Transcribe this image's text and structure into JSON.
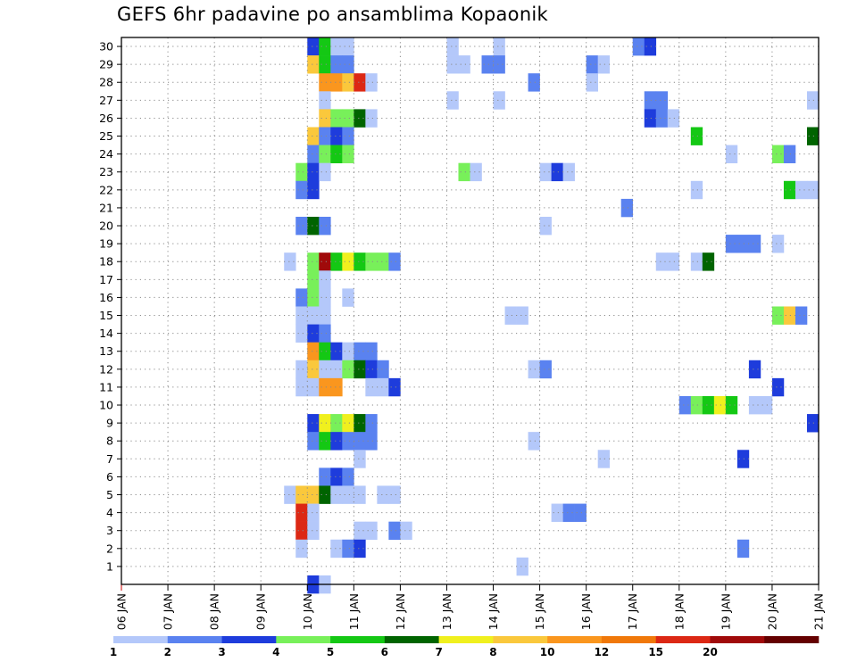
{
  "chart_data": {
    "type": "heatmap",
    "title": "GEFS 6hr padavine po ansamblima Kopaonik",
    "xlabel": "",
    "ylabel": "",
    "x_tick_labels": [
      "06 JAN",
      "07 JAN",
      "08 JAN",
      "09 JAN",
      "10 JAN",
      "11 JAN",
      "12 JAN",
      "13 JAN",
      "14 JAN",
      "15 JAN",
      "16 JAN",
      "17 JAN",
      "18 JAN",
      "19 JAN",
      "20 JAN",
      "21 JAN"
    ],
    "y_tick_labels": [
      "1",
      "2",
      "3",
      "4",
      "5",
      "6",
      "7",
      "8",
      "9",
      "10",
      "11",
      "12",
      "13",
      "14",
      "15",
      "16",
      "17",
      "18",
      "19",
      "20",
      "21",
      "22",
      "23",
      "24",
      "25",
      "26",
      "27",
      "28",
      "29",
      "30"
    ],
    "xlim": [
      0,
      60
    ],
    "ylim": [
      0,
      30.5
    ],
    "x_units": "6-hour steps since 06 JAN 00Z",
    "grid": "dotted",
    "colorbar": {
      "boundaries": [
        "1",
        "2",
        "3",
        "4",
        "5",
        "6",
        "7",
        "8",
        "10",
        "12",
        "15",
        "20"
      ],
      "colors": [
        "#b4c8fa",
        "#5a82f0",
        "#1e3cdc",
        "#78f05a",
        "#14c814",
        "#006400",
        "#f0f01e",
        "#fac83c",
        "#fa961e",
        "#f0780a",
        "#dc2814",
        "#a00a0a",
        "#640000"
      ]
    },
    "cells": [
      {
        "m": 30,
        "t": 16.5,
        "c": 2
      },
      {
        "m": 30,
        "t": 17.5,
        "c": 4
      },
      {
        "m": 30,
        "t": 18.5,
        "c": 0
      },
      {
        "m": 30,
        "t": 19.5,
        "c": 0
      },
      {
        "m": 30,
        "t": 28.5,
        "c": 0
      },
      {
        "m": 30,
        "t": 32.5,
        "c": 0
      },
      {
        "m": 30,
        "t": 44.5,
        "c": 1
      },
      {
        "m": 30,
        "t": 45.5,
        "c": 2
      },
      {
        "m": 29,
        "t": 16.5,
        "c": 7
      },
      {
        "m": 29,
        "t": 17.5,
        "c": 4
      },
      {
        "m": 29,
        "t": 18.5,
        "c": 1
      },
      {
        "m": 29,
        "t": 19.5,
        "c": 1
      },
      {
        "m": 29,
        "t": 28.5,
        "c": 0
      },
      {
        "m": 29,
        "t": 29.5,
        "c": 0
      },
      {
        "m": 29,
        "t": 31.5,
        "c": 1
      },
      {
        "m": 29,
        "t": 32.5,
        "c": 1
      },
      {
        "m": 29,
        "t": 40.5,
        "c": 1
      },
      {
        "m": 29,
        "t": 41.5,
        "c": 0
      },
      {
        "m": 28,
        "t": 17.5,
        "c": 8
      },
      {
        "m": 28,
        "t": 18.5,
        "c": 8
      },
      {
        "m": 28,
        "t": 19.5,
        "c": 7
      },
      {
        "m": 28,
        "t": 20.5,
        "c": 10
      },
      {
        "m": 28,
        "t": 21.5,
        "c": 0
      },
      {
        "m": 28,
        "t": 35.5,
        "c": 1
      },
      {
        "m": 28,
        "t": 40.5,
        "c": 0
      },
      {
        "m": 27,
        "t": 17.5,
        "c": 0
      },
      {
        "m": 27,
        "t": 28.5,
        "c": 0
      },
      {
        "m": 27,
        "t": 32.5,
        "c": 0
      },
      {
        "m": 27,
        "t": 45.5,
        "c": 1
      },
      {
        "m": 27,
        "t": 46.5,
        "c": 1
      },
      {
        "m": 27,
        "t": 59.5,
        "c": 0
      },
      {
        "m": 26,
        "t": 17.5,
        "c": 7
      },
      {
        "m": 26,
        "t": 18.5,
        "c": 3
      },
      {
        "m": 26,
        "t": 19.5,
        "c": 3
      },
      {
        "m": 26,
        "t": 20.5,
        "c": 5
      },
      {
        "m": 26,
        "t": 21.5,
        "c": 0
      },
      {
        "m": 26,
        "t": 45.5,
        "c": 2
      },
      {
        "m": 26,
        "t": 46.5,
        "c": 1
      },
      {
        "m": 26,
        "t": 47.5,
        "c": 0
      },
      {
        "m": 25,
        "t": 16.5,
        "c": 7
      },
      {
        "m": 25,
        "t": 17.5,
        "c": 1
      },
      {
        "m": 25,
        "t": 18.5,
        "c": 2
      },
      {
        "m": 25,
        "t": 19.5,
        "c": 1
      },
      {
        "m": 25,
        "t": 49.5,
        "c": 4
      },
      {
        "m": 25,
        "t": 59.5,
        "c": 5
      },
      {
        "m": 24,
        "t": 16.5,
        "c": 1
      },
      {
        "m": 24,
        "t": 17.5,
        "c": 3
      },
      {
        "m": 24,
        "t": 18.5,
        "c": 4
      },
      {
        "m": 24,
        "t": 19.5,
        "c": 3
      },
      {
        "m": 24,
        "t": 52.5,
        "c": 0
      },
      {
        "m": 24,
        "t": 56.5,
        "c": 3
      },
      {
        "m": 24,
        "t": 57.5,
        "c": 1
      },
      {
        "m": 23,
        "t": 15.5,
        "c": 3
      },
      {
        "m": 23,
        "t": 16.5,
        "c": 2
      },
      {
        "m": 23,
        "t": 17.5,
        "c": 0
      },
      {
        "m": 23,
        "t": 29.5,
        "c": 3
      },
      {
        "m": 23,
        "t": 30.5,
        "c": 0
      },
      {
        "m": 23,
        "t": 36.5,
        "c": 0
      },
      {
        "m": 23,
        "t": 37.5,
        "c": 2
      },
      {
        "m": 23,
        "t": 38.5,
        "c": 0
      },
      {
        "m": 22,
        "t": 15.5,
        "c": 1
      },
      {
        "m": 22,
        "t": 16.5,
        "c": 2
      },
      {
        "m": 22,
        "t": 49.5,
        "c": 0
      },
      {
        "m": 22,
        "t": 57.5,
        "c": 4
      },
      {
        "m": 22,
        "t": 58.5,
        "c": 0
      },
      {
        "m": 22,
        "t": 59.5,
        "c": 0
      },
      {
        "m": 21,
        "t": 43.5,
        "c": 1
      },
      {
        "m": 20,
        "t": 15.5,
        "c": 1
      },
      {
        "m": 20,
        "t": 16.5,
        "c": 5
      },
      {
        "m": 20,
        "t": 17.5,
        "c": 1
      },
      {
        "m": 20,
        "t": 36.5,
        "c": 0
      },
      {
        "m": 19,
        "t": 52.5,
        "c": 1
      },
      {
        "m": 19,
        "t": 53.5,
        "c": 1
      },
      {
        "m": 19,
        "t": 54.5,
        "c": 1
      },
      {
        "m": 19,
        "t": 56.5,
        "c": 0
      },
      {
        "m": 18,
        "t": 14.5,
        "c": 0
      },
      {
        "m": 18,
        "t": 16.5,
        "c": 3
      },
      {
        "m": 18,
        "t": 17.5,
        "c": 11
      },
      {
        "m": 18,
        "t": 18.5,
        "c": 4
      },
      {
        "m": 18,
        "t": 19.5,
        "c": 6
      },
      {
        "m": 18,
        "t": 20.5,
        "c": 4
      },
      {
        "m": 18,
        "t": 21.5,
        "c": 3
      },
      {
        "m": 18,
        "t": 22.5,
        "c": 3
      },
      {
        "m": 18,
        "t": 23.5,
        "c": 1
      },
      {
        "m": 18,
        "t": 46.5,
        "c": 0
      },
      {
        "m": 18,
        "t": 47.5,
        "c": 0
      },
      {
        "m": 18,
        "t": 49.5,
        "c": 0
      },
      {
        "m": 18,
        "t": 50.5,
        "c": 5
      },
      {
        "m": 17,
        "t": 16.5,
        "c": 3
      },
      {
        "m": 17,
        "t": 17.5,
        "c": 0
      },
      {
        "m": 16,
        "t": 15.5,
        "c": 1
      },
      {
        "m": 16,
        "t": 16.5,
        "c": 3
      },
      {
        "m": 16,
        "t": 17.5,
        "c": 0
      },
      {
        "m": 16,
        "t": 19.5,
        "c": 0
      },
      {
        "m": 15,
        "t": 15.5,
        "c": 0
      },
      {
        "m": 15,
        "t": 16.5,
        "c": 0
      },
      {
        "m": 15,
        "t": 17.5,
        "c": 0
      },
      {
        "m": 15,
        "t": 33.5,
        "c": 0
      },
      {
        "m": 15,
        "t": 34.5,
        "c": 0
      },
      {
        "m": 15,
        "t": 56.5,
        "c": 3
      },
      {
        "m": 15,
        "t": 57.5,
        "c": 7
      },
      {
        "m": 15,
        "t": 58.5,
        "c": 1
      },
      {
        "m": 14,
        "t": 15.5,
        "c": 0
      },
      {
        "m": 14,
        "t": 16.5,
        "c": 2
      },
      {
        "m": 14,
        "t": 17.5,
        "c": 1
      },
      {
        "m": 13,
        "t": 16.5,
        "c": 8
      },
      {
        "m": 13,
        "t": 17.5,
        "c": 4
      },
      {
        "m": 13,
        "t": 18.5,
        "c": 2
      },
      {
        "m": 13,
        "t": 19.5,
        "c": 0
      },
      {
        "m": 13,
        "t": 20.5,
        "c": 1
      },
      {
        "m": 13,
        "t": 21.5,
        "c": 1
      },
      {
        "m": 12,
        "t": 15.5,
        "c": 0
      },
      {
        "m": 12,
        "t": 16.5,
        "c": 7
      },
      {
        "m": 12,
        "t": 17.5,
        "c": 0
      },
      {
        "m": 12,
        "t": 18.5,
        "c": 0
      },
      {
        "m": 12,
        "t": 19.5,
        "c": 3
      },
      {
        "m": 12,
        "t": 20.5,
        "c": 5
      },
      {
        "m": 12,
        "t": 21.5,
        "c": 2
      },
      {
        "m": 12,
        "t": 22.5,
        "c": 1
      },
      {
        "m": 12,
        "t": 35.5,
        "c": 0
      },
      {
        "m": 12,
        "t": 36.5,
        "c": 1
      },
      {
        "m": 12,
        "t": 54.5,
        "c": 2
      },
      {
        "m": 11,
        "t": 15.5,
        "c": 0
      },
      {
        "m": 11,
        "t": 16.5,
        "c": 0
      },
      {
        "m": 11,
        "t": 17.5,
        "c": 8
      },
      {
        "m": 11,
        "t": 18.5,
        "c": 8
      },
      {
        "m": 11,
        "t": 21.5,
        "c": 0
      },
      {
        "m": 11,
        "t": 22.5,
        "c": 0
      },
      {
        "m": 11,
        "t": 23.5,
        "c": 2
      },
      {
        "m": 11,
        "t": 56.5,
        "c": 2
      },
      {
        "m": 10,
        "t": 48.5,
        "c": 1
      },
      {
        "m": 10,
        "t": 49.5,
        "c": 3
      },
      {
        "m": 10,
        "t": 50.5,
        "c": 4
      },
      {
        "m": 10,
        "t": 51.5,
        "c": 6
      },
      {
        "m": 10,
        "t": 52.5,
        "c": 4
      },
      {
        "m": 10,
        "t": 54.5,
        "c": 0
      },
      {
        "m": 10,
        "t": 55.5,
        "c": 0
      },
      {
        "m": 9,
        "t": 16.5,
        "c": 2
      },
      {
        "m": 9,
        "t": 17.5,
        "c": 6
      },
      {
        "m": 9,
        "t": 18.5,
        "c": 3
      },
      {
        "m": 9,
        "t": 19.5,
        "c": 6
      },
      {
        "m": 9,
        "t": 20.5,
        "c": 5
      },
      {
        "m": 9,
        "t": 21.5,
        "c": 1
      },
      {
        "m": 9,
        "t": 59.5,
        "c": 2
      },
      {
        "m": 8,
        "t": 16.5,
        "c": 1
      },
      {
        "m": 8,
        "t": 17.5,
        "c": 4
      },
      {
        "m": 8,
        "t": 18.5,
        "c": 2
      },
      {
        "m": 8,
        "t": 19.5,
        "c": 1
      },
      {
        "m": 8,
        "t": 20.5,
        "c": 1
      },
      {
        "m": 8,
        "t": 21.5,
        "c": 1
      },
      {
        "m": 8,
        "t": 35.5,
        "c": 0
      },
      {
        "m": 7,
        "t": 20.5,
        "c": 0
      },
      {
        "m": 7,
        "t": 41.5,
        "c": 0
      },
      {
        "m": 7,
        "t": 53.5,
        "c": 2
      },
      {
        "m": 6,
        "t": 17.5,
        "c": 1
      },
      {
        "m": 6,
        "t": 18.5,
        "c": 2
      },
      {
        "m": 6,
        "t": 19.5,
        "c": 1
      },
      {
        "m": 5,
        "t": 14.5,
        "c": 0
      },
      {
        "m": 5,
        "t": 15.5,
        "c": 7
      },
      {
        "m": 5,
        "t": 16.5,
        "c": 7
      },
      {
        "m": 5,
        "t": 17.5,
        "c": 5
      },
      {
        "m": 5,
        "t": 18.5,
        "c": 0
      },
      {
        "m": 5,
        "t": 19.5,
        "c": 0
      },
      {
        "m": 5,
        "t": 20.5,
        "c": 0
      },
      {
        "m": 5,
        "t": 22.5,
        "c": 0
      },
      {
        "m": 5,
        "t": 23.5,
        "c": 0
      },
      {
        "m": 4,
        "t": 15.5,
        "c": 10
      },
      {
        "m": 4,
        "t": 16.5,
        "c": 0
      },
      {
        "m": 4,
        "t": 37.5,
        "c": 0
      },
      {
        "m": 4,
        "t": 38.5,
        "c": 1
      },
      {
        "m": 4,
        "t": 39.5,
        "c": 1
      },
      {
        "m": 3,
        "t": 15.5,
        "c": 10
      },
      {
        "m": 3,
        "t": 16.5,
        "c": 0
      },
      {
        "m": 3,
        "t": 20.5,
        "c": 0
      },
      {
        "m": 3,
        "t": 21.5,
        "c": 0
      },
      {
        "m": 3,
        "t": 23.5,
        "c": 1
      },
      {
        "m": 3,
        "t": 24.5,
        "c": 0
      },
      {
        "m": 2,
        "t": 15.5,
        "c": 0
      },
      {
        "m": 2,
        "t": 18.5,
        "c": 0
      },
      {
        "m": 2,
        "t": 19.5,
        "c": 1
      },
      {
        "m": 2,
        "t": 20.5,
        "c": 2
      },
      {
        "m": 2,
        "t": 53.5,
        "c": 1
      },
      {
        "m": 1,
        "t": 34.5,
        "c": 0
      },
      {
        "m": 0,
        "t": 16.5,
        "c": 2
      },
      {
        "m": 0,
        "t": 17.5,
        "c": 0
      }
    ]
  }
}
